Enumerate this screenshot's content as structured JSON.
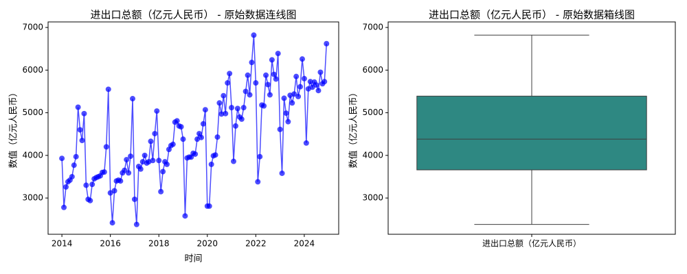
{
  "chart_data": [
    {
      "type": "line",
      "title": "进出口总额（亿元人民币） - 原始数据连线图",
      "xlabel": "时间",
      "ylabel": "数值（亿元人民币）",
      "color": "#0000ff",
      "x": [
        2014,
        2014.083,
        2014.167,
        2014.25,
        2014.333,
        2014.417,
        2014.5,
        2014.583,
        2014.667,
        2014.75,
        2014.833,
        2014.917,
        2015,
        2015.083,
        2015.167,
        2015.25,
        2015.333,
        2015.417,
        2015.5,
        2015.583,
        2015.667,
        2015.75,
        2015.833,
        2015.917,
        2016,
        2016.083,
        2016.167,
        2016.25,
        2016.333,
        2016.417,
        2016.5,
        2016.583,
        2016.667,
        2016.75,
        2016.833,
        2016.917,
        2017,
        2017.083,
        2017.167,
        2017.25,
        2017.333,
        2017.417,
        2017.5,
        2017.583,
        2017.667,
        2017.75,
        2017.833,
        2017.917,
        2018,
        2018.083,
        2018.167,
        2018.25,
        2018.333,
        2018.417,
        2018.5,
        2018.583,
        2018.667,
        2018.75,
        2018.833,
        2018.917,
        2019,
        2019.083,
        2019.167,
        2019.25,
        2019.333,
        2019.417,
        2019.5,
        2019.583,
        2019.667,
        2019.75,
        2019.833,
        2019.917,
        2020,
        2020.083,
        2020.167,
        2020.25,
        2020.333,
        2020.417,
        2020.5,
        2020.583,
        2020.667,
        2020.75,
        2020.833,
        2020.917,
        2021,
        2021.083,
        2021.167,
        2021.25,
        2021.333,
        2021.417,
        2021.5,
        2021.583,
        2021.667,
        2021.75,
        2021.833,
        2021.917,
        2022,
        2022.083,
        2022.167,
        2022.25,
        2022.333,
        2022.417,
        2022.5,
        2022.583,
        2022.667,
        2022.75,
        2022.833,
        2022.917,
        2023,
        2023.083,
        2023.167,
        2023.25,
        2023.333,
        2023.417,
        2023.5,
        2023.583,
        2023.667,
        2023.75,
        2023.833,
        2023.917,
        2024,
        2024.083,
        2024.167,
        2024.25,
        2024.333,
        2024.417,
        2024.5,
        2024.583,
        2024.667,
        2024.75,
        2024.833,
        2024.917
      ],
      "values": [
        3930,
        2780,
        3260,
        3380,
        3420,
        3500,
        3770,
        3970,
        5130,
        4600,
        4350,
        4980,
        3300,
        2970,
        2940,
        3320,
        3450,
        3480,
        3500,
        3520,
        3600,
        3610,
        4200,
        5550,
        3120,
        2420,
        3170,
        3400,
        3420,
        3400,
        3590,
        3650,
        3900,
        3590,
        3980,
        5330,
        2970,
        2380,
        3740,
        3680,
        3850,
        4000,
        3820,
        3850,
        4330,
        3880,
        4510,
        5040,
        3880,
        3150,
        3620,
        3850,
        3790,
        4140,
        4230,
        4260,
        4780,
        4810,
        4690,
        4670,
        4380,
        2580,
        3940,
        3960,
        3960,
        4050,
        4030,
        4380,
        4510,
        4420,
        4740,
        5070,
        2810,
        2810,
        3790,
        3990,
        4010,
        4430,
        5230,
        4970,
        5400,
        4980,
        5700,
        5920,
        5120,
        3860,
        4690,
        5100,
        4900,
        4850,
        5120,
        5500,
        5880,
        5420,
        6180,
        6820,
        5700,
        3380,
        3970,
        5180,
        5160,
        5880,
        5660,
        5420,
        6240,
        5900,
        5790,
        6390,
        4610,
        3580,
        5340,
        4990,
        4790,
        5410,
        5230,
        5440,
        5850,
        5380,
        5610,
        6260,
        5800,
        4290,
        5560,
        5730,
        5600,
        5720,
        5650,
        5520,
        5950,
        5680,
        5730,
        6620
      ],
      "xlim": [
        2013.43,
        2025.42
      ],
      "xticks": [
        2014,
        2016,
        2018,
        2020,
        2022,
        2024
      ],
      "ylim": [
        2150,
        7130
      ],
      "yticks": [
        3000,
        4000,
        5000,
        6000,
        7000
      ]
    },
    {
      "type": "box",
      "title": "进出口总额（亿元人民币） - 原始数据箱线图",
      "ylabel": "数值（亿元人民币）",
      "categories": [
        "进出口总额（亿元人民币）"
      ],
      "color": "#2e8882",
      "min": 2380,
      "q1": 3660,
      "median": 4380,
      "q3": 5390,
      "max": 6820,
      "ylim": [
        2150,
        7130
      ],
      "yticks": [
        3000,
        4000,
        5000,
        6000,
        7000
      ]
    }
  ]
}
